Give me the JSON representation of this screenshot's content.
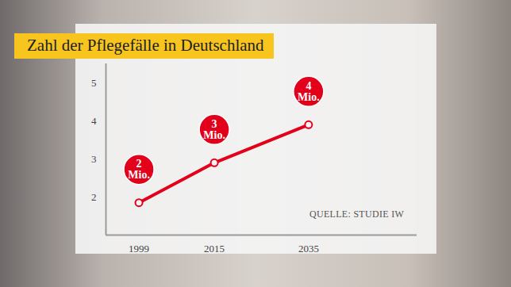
{
  "chart_data": {
    "type": "line",
    "title": "Zahl der Pflegefälle in Deutschland",
    "source": "QUELLE: STUDIE IW",
    "x": [
      1999,
      2015,
      2035
    ],
    "values": [
      1.85,
      2.9,
      3.9
    ],
    "value_labels": [
      "2 Mio.",
      "3 Mio.",
      "4 Mio."
    ],
    "data_labels": true,
    "color": "#e2001a",
    "marker": "circle",
    "xlim": [
      1992,
      2058
    ],
    "xticks": [
      1999,
      2015,
      2035
    ],
    "ylim": [
      1,
      5.5
    ],
    "yticks": [
      2,
      3,
      4,
      5
    ],
    "grid": false
  }
}
